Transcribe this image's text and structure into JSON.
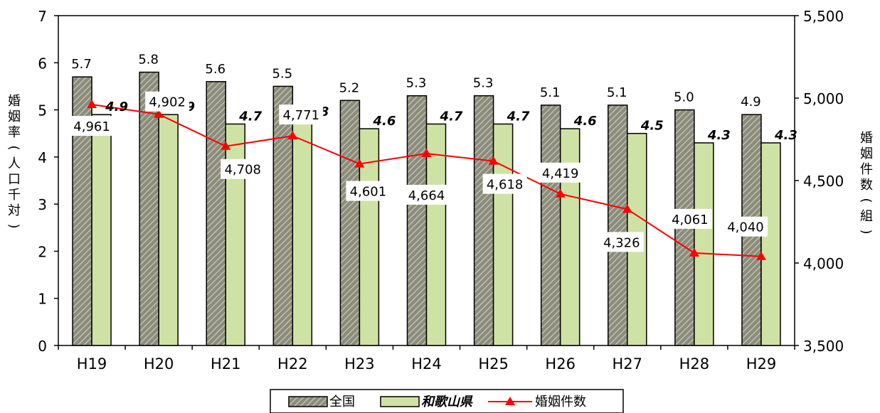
{
  "chart_data": {
    "type": "bar",
    "categories": [
      "H19",
      "H20",
      "H21",
      "H22",
      "H23",
      "H24",
      "H25",
      "H26",
      "H27",
      "H28",
      "H29"
    ],
    "series": [
      {
        "name": "全国",
        "kind": "bar",
        "axis": "left",
        "values": [
          5.7,
          5.8,
          5.6,
          5.5,
          5.2,
          5.3,
          5.3,
          5.1,
          5.1,
          5.0,
          4.9
        ],
        "labels": [
          "5.7",
          "5.8",
          "5.6",
          "5.5",
          "5.2",
          "5.3",
          "5.3",
          "5.1",
          "5.1",
          "5.0",
          "4.9"
        ],
        "color": "#9a9a88"
      },
      {
        "name": "和歌山県",
        "kind": "bar",
        "axis": "left",
        "values": [
          4.9,
          4.9,
          4.7,
          4.8,
          4.6,
          4.7,
          4.7,
          4.6,
          4.5,
          4.3,
          4.3
        ],
        "labels": [
          "4.9",
          "4.9",
          "4.7",
          "4.8",
          "4.6",
          "4.7",
          "4.7",
          "4.6",
          "4.5",
          "4.3",
          "4.3"
        ],
        "color": "#cfe2a5"
      },
      {
        "name": "婚姻件数",
        "kind": "line",
        "axis": "right",
        "values": [
          4961,
          4902,
          4708,
          4771,
          4601,
          4664,
          4618,
          4419,
          4326,
          4061,
          4040
        ],
        "labels": [
          "4,961",
          "4,902",
          "4,708",
          "4,771",
          "4,601",
          "4,664",
          "4,618",
          "4,419",
          "4,326",
          "4,061",
          "4,040"
        ],
        "color": "#ff0000"
      }
    ],
    "y_left": {
      "label": "婚姻率(人口千対)",
      "ylim": [
        0,
        7
      ],
      "ticks": [
        "0",
        "1",
        "2",
        "3",
        "4",
        "5",
        "6",
        "7"
      ]
    },
    "y_right": {
      "label": "婚姻件数(組)",
      "ylim": [
        3500,
        5500
      ],
      "ticks": [
        "3,500",
        "4,000",
        "4,500",
        "5,000",
        "5,500"
      ]
    },
    "grid": false,
    "legend_position": "bottom-center"
  }
}
